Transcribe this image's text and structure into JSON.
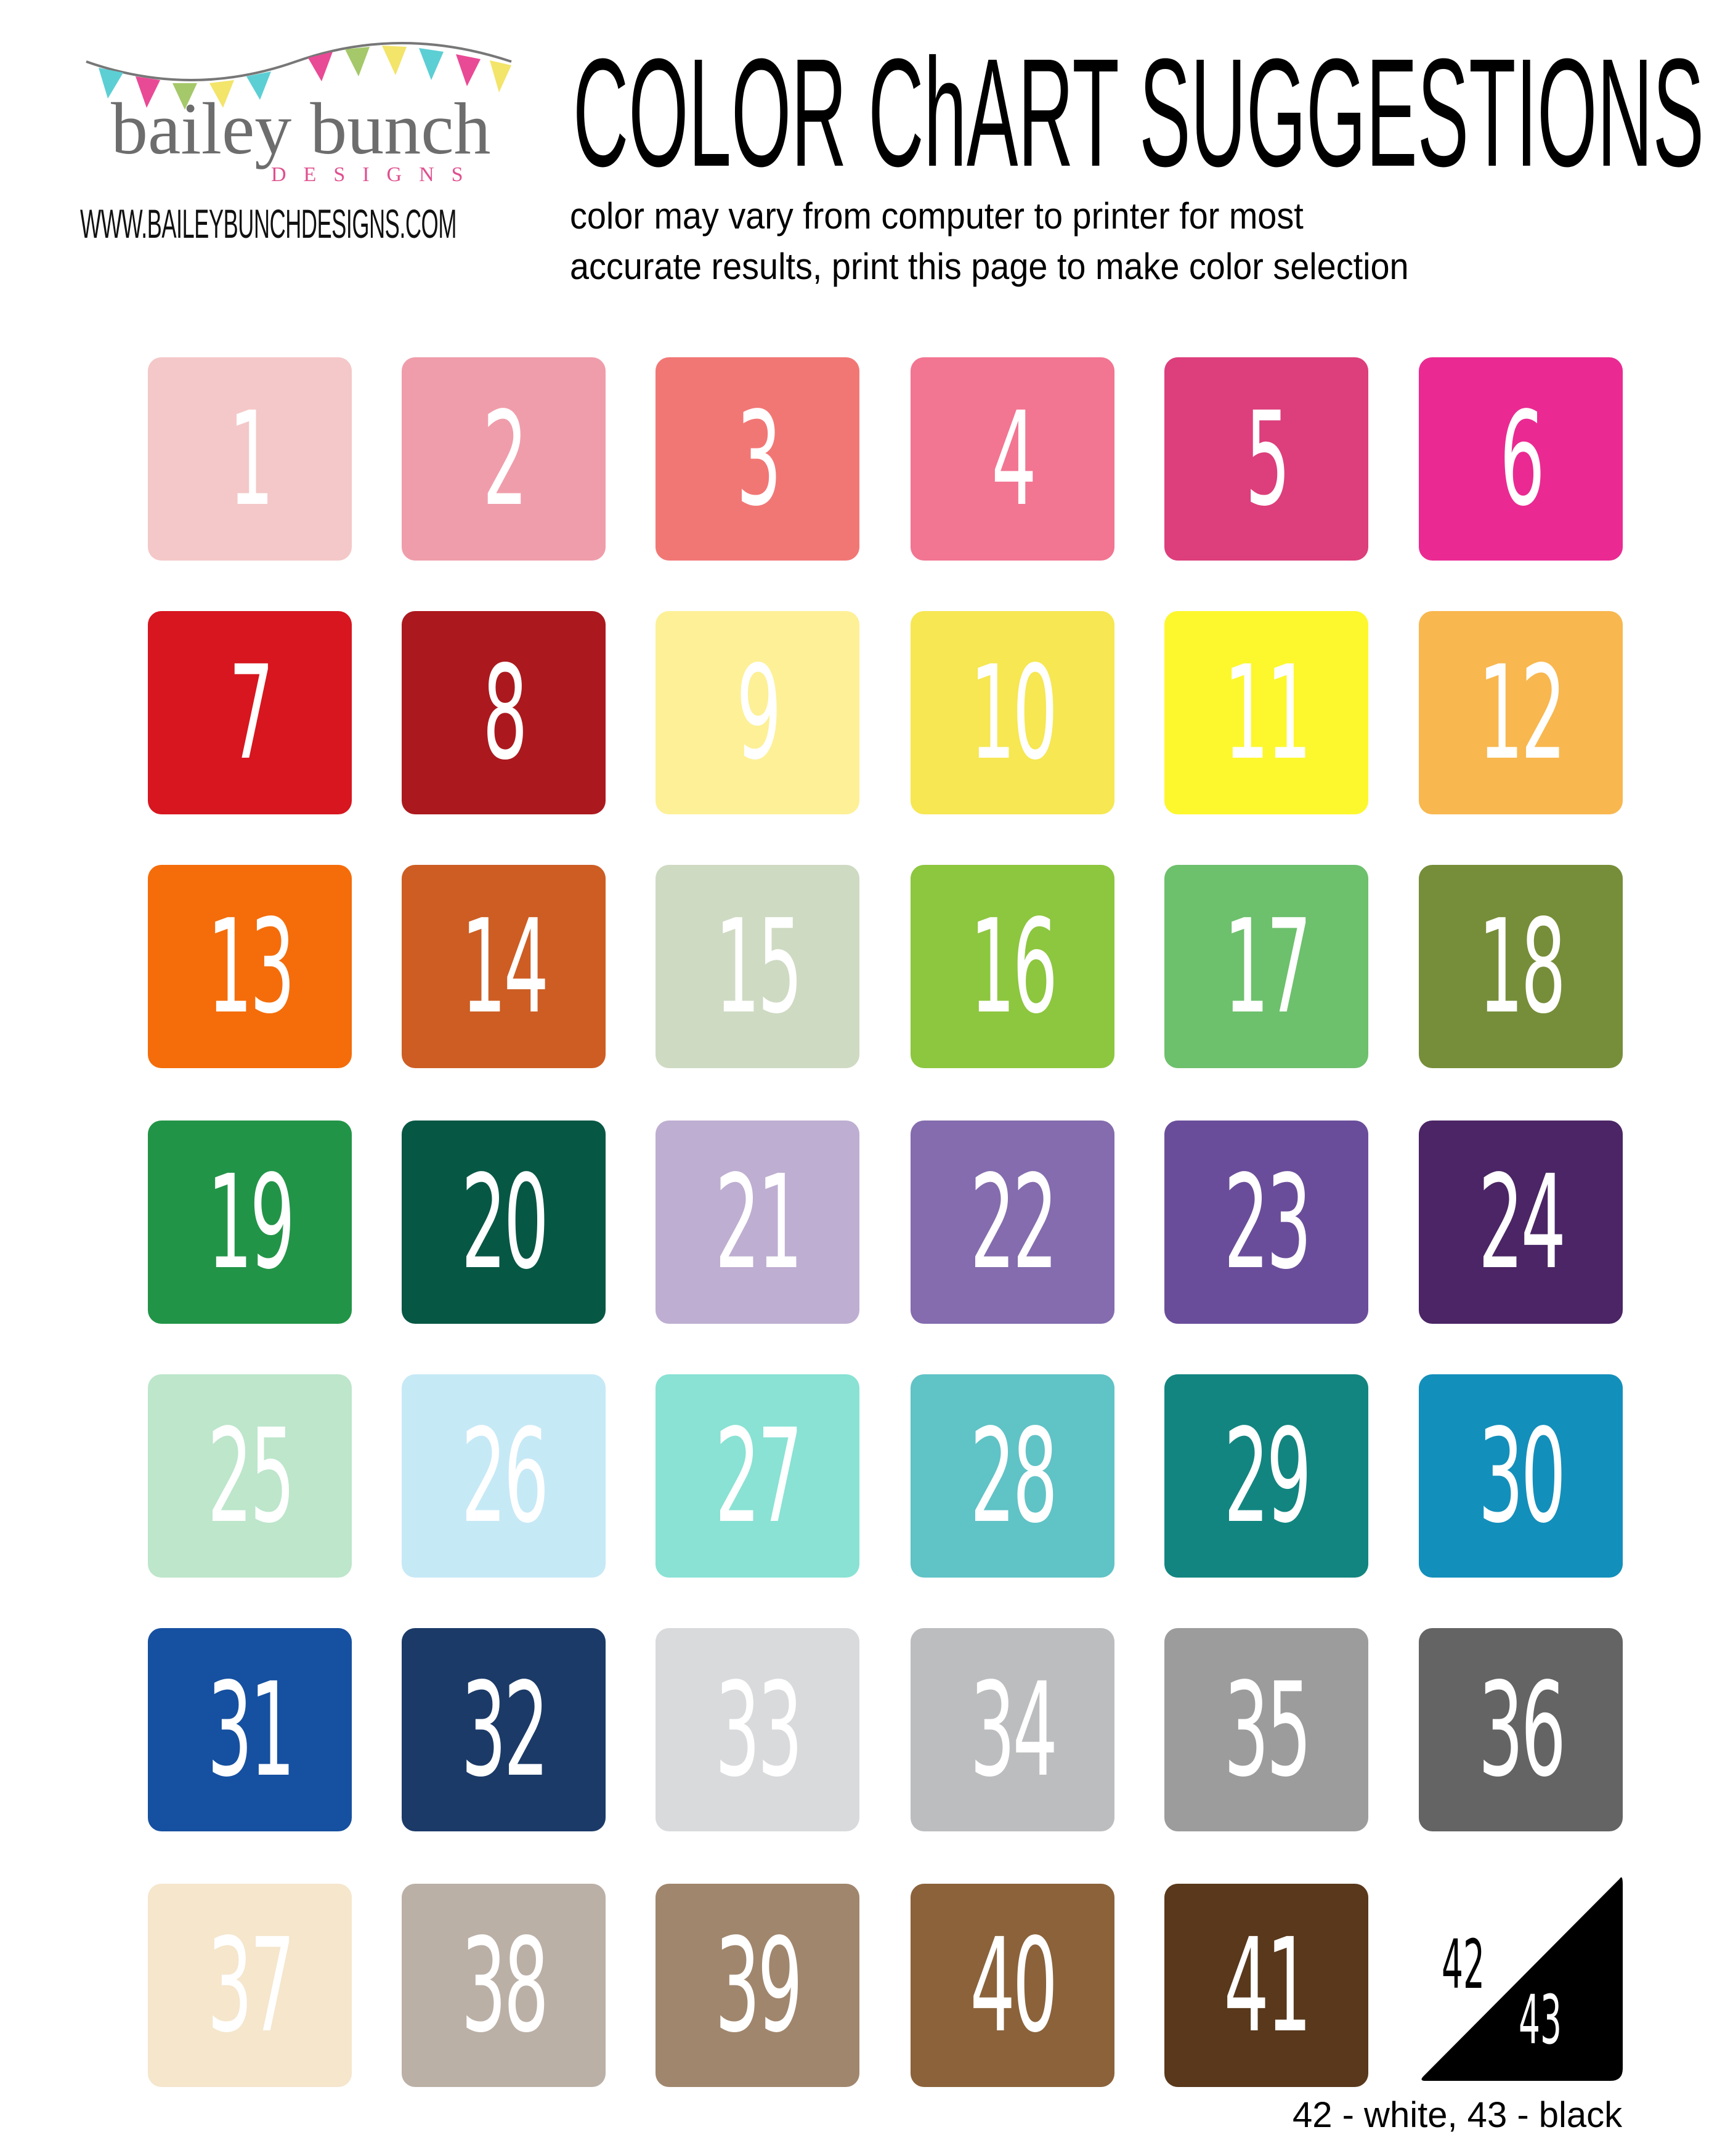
{
  "logo": {
    "text": "bailey bunch",
    "sub": "DESIGNS"
  },
  "url": "WWW.BAILEYBUNCHDESIGNS.COM",
  "title": "COLOR ChART SUGGESTIONS",
  "subtitle": [
    "color may vary from computer to printer for most",
    "accurate results, print this page to make color selection"
  ],
  "swatches": [
    {
      "n": "1",
      "color": "#f4c8c8"
    },
    {
      "n": "2",
      "color": "#f09dab"
    },
    {
      "n": "3",
      "color": "#f17775"
    },
    {
      "n": "4",
      "color": "#f27592"
    },
    {
      "n": "5",
      "color": "#dd3e7c"
    },
    {
      "n": "6",
      "color": "#ea2a92"
    },
    {
      "n": "7",
      "color": "#d7161f"
    },
    {
      "n": "8",
      "color": "#ab191e"
    },
    {
      "n": "9",
      "color": "#fdf097"
    },
    {
      "n": "10",
      "color": "#f6e753"
    },
    {
      "n": "11",
      "color": "#fdf72e"
    },
    {
      "n": "12",
      "color": "#f8b74f"
    },
    {
      "n": "13",
      "color": "#f46d0a"
    },
    {
      "n": "14",
      "color": "#cd5d23"
    },
    {
      "n": "15",
      "color": "#cedac2"
    },
    {
      "n": "16",
      "color": "#8dc63f"
    },
    {
      "n": "17",
      "color": "#6dc06c"
    },
    {
      "n": "18",
      "color": "#768e39"
    },
    {
      "n": "19",
      "color": "#229447"
    },
    {
      "n": "20",
      "color": "#075745"
    },
    {
      "n": "21",
      "color": "#beaed1"
    },
    {
      "n": "22",
      "color": "#846cae"
    },
    {
      "n": "23",
      "color": "#6a4d9a"
    },
    {
      "n": "24",
      "color": "#4b2565"
    },
    {
      "n": "25",
      "color": "#bde6cb"
    },
    {
      "n": "26",
      "color": "#c6e9f6"
    },
    {
      "n": "27",
      "color": "#89e2d4"
    },
    {
      "n": "28",
      "color": "#60c3c6"
    },
    {
      "n": "29",
      "color": "#128580"
    },
    {
      "n": "30",
      "color": "#138fbb"
    },
    {
      "n": "31",
      "color": "#1650a0"
    },
    {
      "n": "32",
      "color": "#1b3a68"
    },
    {
      "n": "33",
      "color": "#d9dadc"
    },
    {
      "n": "34",
      "color": "#bcbdbf"
    },
    {
      "n": "35",
      "color": "#9c9c9c"
    },
    {
      "n": "36",
      "color": "#646464"
    },
    {
      "n": "37",
      "color": "#f5e6cc"
    },
    {
      "n": "38",
      "color": "#bbb0a6"
    },
    {
      "n": "39",
      "color": "#a0866d"
    },
    {
      "n": "40",
      "color": "#8b623a"
    },
    {
      "n": "41",
      "color": "#59381b"
    }
  ],
  "split_swatch": {
    "top": "42",
    "bottom": "43",
    "top_color": "#ffffff",
    "bottom_color": "#000000"
  },
  "footer": "42 - white, 43 - black"
}
